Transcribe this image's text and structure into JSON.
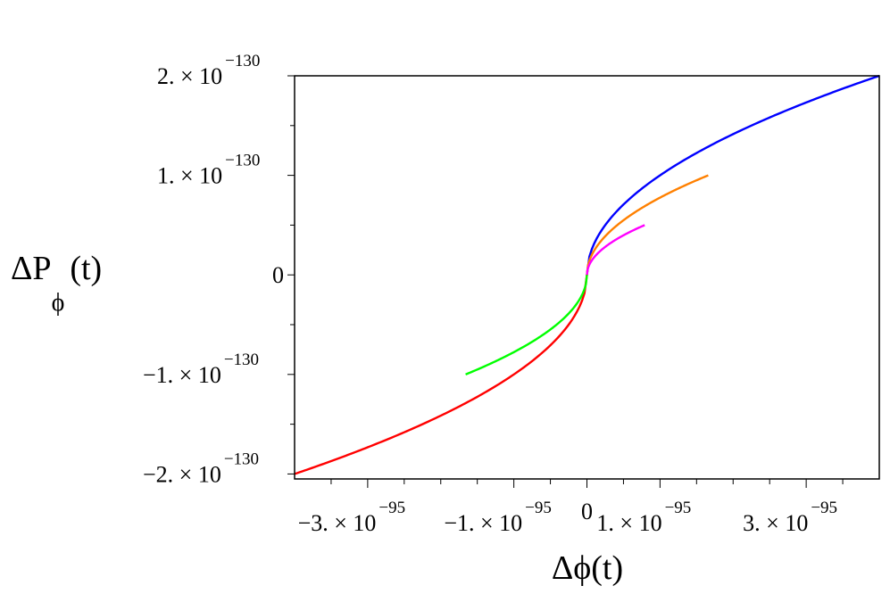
{
  "chart_data": {
    "type": "line",
    "xlabel": "Δϕ(t)",
    "ylabel": {
      "main": "ΔP",
      "subscript": "ϕ",
      "suffix": "(t)"
    },
    "xlim": [
      -4e-95,
      4e-95
    ],
    "ylim": [
      -2.05e-130,
      2e-130
    ],
    "x_ticks": [
      {
        "value": -3e-95,
        "mantissa": "−3. × 10",
        "exponent": "−95"
      },
      {
        "value": -1e-95,
        "mantissa": "−1. × 10",
        "exponent": "−95"
      },
      {
        "value": 0,
        "mantissa": "0",
        "exponent": ""
      },
      {
        "value": 1e-95,
        "mantissa": "1. × 10",
        "exponent": "−95"
      },
      {
        "value": 3e-95,
        "mantissa": "3. × 10",
        "exponent": "−95"
      }
    ],
    "x_minor_ticks": [
      -3.5e-95,
      -2.5e-95,
      -2e-95,
      -1.5e-95,
      -5e-96,
      5e-96,
      1.5e-95,
      2e-95,
      2.5e-95,
      3.5e-95
    ],
    "y_ticks": [
      {
        "value": 2e-130,
        "mantissa": "2. × 10",
        "exponent": "−130"
      },
      {
        "value": 1e-130,
        "mantissa": "1. × 10",
        "exponent": "−130"
      },
      {
        "value": 0,
        "mantissa": "0",
        "exponent": ""
      },
      {
        "value": -1e-130,
        "mantissa": "−1. × 10",
        "exponent": "−130"
      },
      {
        "value": -2e-130,
        "mantissa": "−2. × 10",
        "exponent": "−130"
      }
    ],
    "y_minor_ticks": [
      1.5e-130,
      5e-131,
      -5e-131,
      -1.5e-130
    ],
    "grid": false,
    "series": [
      {
        "color": "#0000ff",
        "values": [
          [
            0,
            0
          ],
          [
            4e-95,
            2e-130
          ]
        ]
      },
      {
        "color": "#ff8000",
        "values": [
          [
            0,
            0
          ],
          [
            1.66e-95,
            1e-130
          ]
        ]
      },
      {
        "color": "#ff00ff",
        "values": [
          [
            0,
            0
          ],
          [
            7.9e-96,
            5e-131
          ]
        ]
      },
      {
        "color": "#ff0000",
        "values": [
          [
            0,
            0
          ],
          [
            -4e-95,
            -2e-130
          ]
        ]
      },
      {
        "color": "#00ff00",
        "values": [
          [
            0,
            0
          ],
          [
            -1.66e-95,
            -1e-130
          ]
        ]
      }
    ]
  }
}
